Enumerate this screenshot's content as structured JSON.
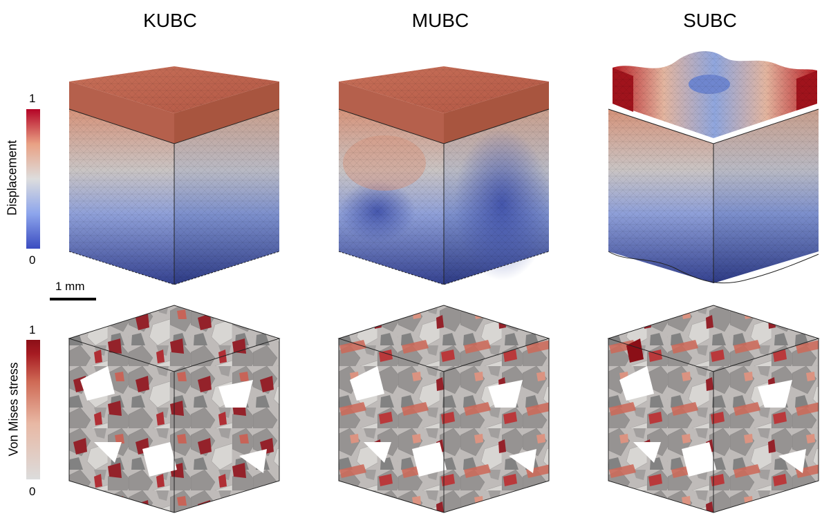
{
  "columns": [
    {
      "label": "KUBC"
    },
    {
      "label": "MUBC"
    },
    {
      "label": "SUBC"
    }
  ],
  "rows": [
    {
      "colorbar_label": "Displacement",
      "max_label": "1",
      "min_label": "0",
      "colormap": [
        "#3b4cc0",
        "#b7c8e8",
        "#dddddd",
        "#e5a689",
        "#b40426"
      ]
    },
    {
      "colorbar_label": "Von Mises stress",
      "max_label": "1",
      "min_label": "0",
      "colormap": [
        "#dcdcdc",
        "#e8b8a4",
        "#d4735e",
        "#b3282a",
        "#8b0f17"
      ]
    }
  ],
  "scale_bar": {
    "label": "1 mm"
  }
}
